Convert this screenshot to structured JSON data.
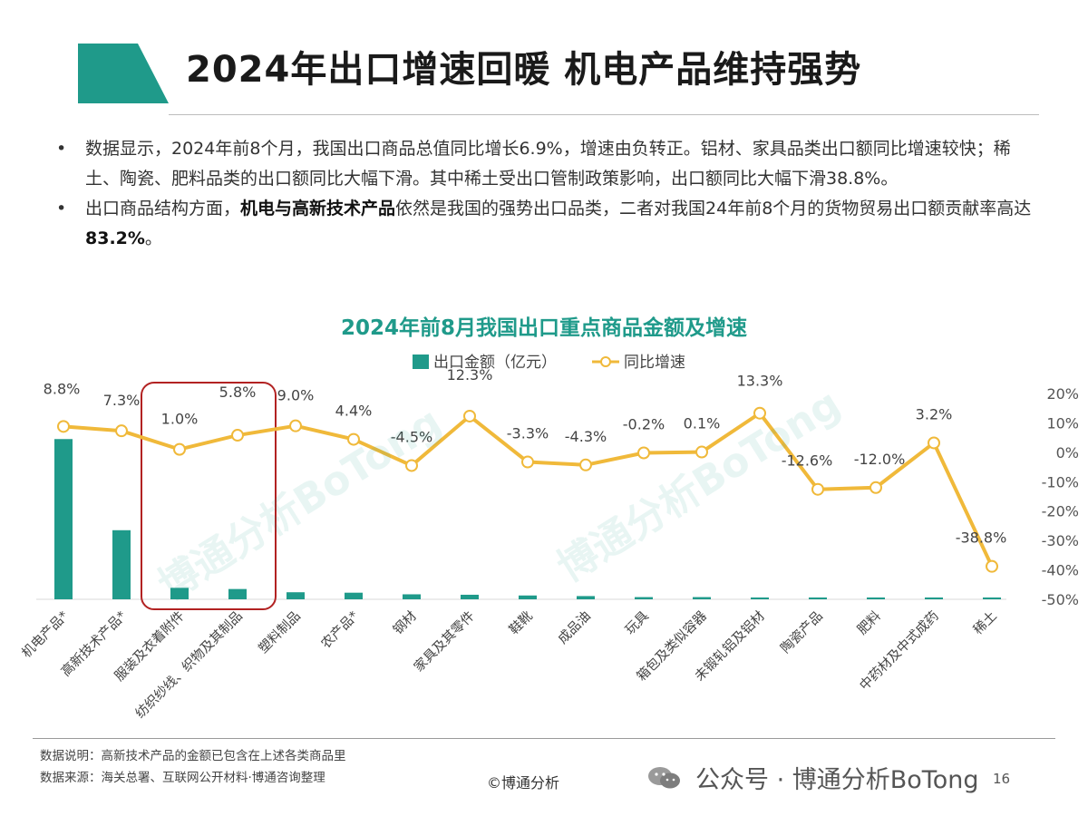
{
  "header": {
    "title": "2024年出口增速回暖 机电产品维持强势"
  },
  "bullets": [
    {
      "parts": [
        {
          "text": "数据显示，2024年前8个月，我国出口商品总值同比增长6.9%，增速由负转正。铝材、家具品类出口额同比增速较快；稀土、陶瓷、肥料品类的出口额同比大幅下滑。其中稀土受出口管制政策影响，出口额同比大幅下滑38.8%。",
          "bold": false
        }
      ]
    },
    {
      "parts": [
        {
          "text": "出口商品结构方面，",
          "bold": false
        },
        {
          "text": "机电与高新技术产品",
          "bold": true
        },
        {
          "text": "依然是我国的强势出口品类，二者对我国24年前8个月的货物贸易出口额贡献率高达",
          "bold": false
        },
        {
          "text": "83.2%",
          "bold": true
        },
        {
          "text": "。",
          "bold": false
        }
      ]
    }
  ],
  "chart_data": {
    "type": "bar",
    "title": "2024年前8月我国出口重点商品金额及增速",
    "categories": [
      "机电产品*",
      "高新技术产品*",
      "服装及衣着附件",
      "纺织纱线、织物及其制品",
      "塑料制品",
      "农产品*",
      "钢材",
      "家具及其零件",
      "鞋靴",
      "成品油",
      "玩具",
      "箱包及类似容器",
      "未锻轧铝及铝材",
      "陶瓷产品",
      "肥料",
      "中药材及中式成药",
      "稀土"
    ],
    "series": [
      {
        "name": "出口金额（亿元）",
        "kind": "bar",
        "color": "#1f9a8a",
        "values": [
          109000,
          47000,
          7800,
          7000,
          4800,
          4500,
          3400,
          3100,
          2600,
          2200,
          1500,
          1500,
          800,
          500,
          300,
          100,
          20
        ]
      },
      {
        "name": "同比增速",
        "kind": "line",
        "color": "#f0b93a",
        "values": [
          8.8,
          7.3,
          1.0,
          5.8,
          9.0,
          4.4,
          -4.5,
          12.3,
          -3.3,
          -4.3,
          -0.2,
          0.1,
          13.3,
          -12.6,
          -12.0,
          3.2,
          -38.8
        ],
        "labels": [
          "8.8%",
          "7.3%",
          "1.0%",
          "5.8%",
          "9.0%",
          "4.4%",
          "-4.5%",
          "12.3%",
          "-3.3%",
          "-4.3%",
          "-0.2%",
          "0.1%",
          "13.3%",
          "-12.6%",
          "-12.0%",
          "3.2%",
          "-38.8%"
        ]
      }
    ],
    "y_right": {
      "ticks": [
        20,
        10,
        0,
        -10,
        -20,
        -30,
        -40,
        -50
      ],
      "tick_labels": [
        "20%",
        "10%",
        "0%",
        "-10%",
        "-20%",
        "-30%",
        "-40%",
        "-50%"
      ],
      "range": [
        -50,
        20
      ]
    },
    "y_left_range": [
      0,
      140000
    ],
    "legend_position": "top-center",
    "highlight": {
      "categories": [
        "服装及衣着附件",
        "纺织纱线、织物及其制品"
      ],
      "color": "#b22222"
    }
  },
  "footer": {
    "note1": "数据说明：高新技术产品的金额已包含在上述各类商品里",
    "note2": "数据来源：海关总署、互联网公开材料·博通咨询整理",
    "copyright": "©博通分析",
    "wechat": "公众号 · 博通分析BoTong",
    "page": "16"
  },
  "colors": {
    "accent": "#1f9a8a",
    "line": "#f0b93a",
    "highlight_box": "#b22222"
  },
  "watermark": "博通分析BoTong"
}
